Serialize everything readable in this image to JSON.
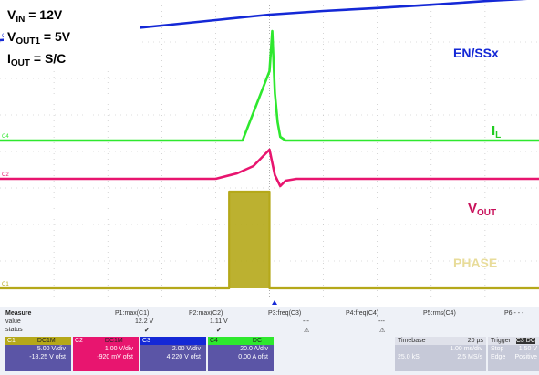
{
  "conditions": {
    "vin": {
      "main": "V",
      "sub": "IN",
      "rest": " = 12V"
    },
    "vout1": {
      "main": "V",
      "sub": "OUT1",
      "rest": " = 5V"
    },
    "iout": {
      "main": "I",
      "sub": "OUT",
      "rest": " = S/C"
    }
  },
  "colors": {
    "c1": "#b5a81a",
    "c2": "#e8156f",
    "c3": "#1428d6",
    "c4": "#2ee82e",
    "grid": "#b9b9b9",
    "label_il": "#22cc22",
    "label_vout": "#c8105a",
    "label_phase": "#e8dc9a"
  },
  "chart_data": {
    "type": "line",
    "title": "",
    "xlabel": "",
    "ylabel": "",
    "x_unit": "ms",
    "xlim": [
      -5,
      5
    ],
    "ylim": [
      0,
      8
    ],
    "grid": true,
    "series": [
      {
        "name": "EN/SSx",
        "channel": "C3",
        "x": [
          -5,
          -4,
          -3,
          -2,
          -1,
          0,
          1,
          2,
          3,
          4,
          5
        ],
        "y": [
          7.05,
          7.15,
          7.3,
          7.45,
          7.6,
          7.75,
          7.85,
          7.93,
          8.02,
          8.12,
          8.2
        ]
      },
      {
        "name": "I",
        "label_sub": "L",
        "channel": "C4",
        "x": [
          -5,
          -1,
          -0.5,
          0,
          0.05,
          0.1,
          0.15,
          0.2,
          0.3,
          0.5,
          5
        ],
        "y": [
          4.3,
          4.3,
          4.3,
          6.2,
          7.3,
          5.6,
          4.8,
          4.4,
          4.3,
          4.3,
          4.3
        ]
      },
      {
        "name": "V",
        "label_sub": "OUT",
        "channel": "C2",
        "x": [
          -5,
          -1,
          -0.6,
          -0.3,
          0,
          0.1,
          0.2,
          0.3,
          0.5,
          1.0,
          5
        ],
        "y": [
          3.25,
          3.25,
          3.4,
          3.6,
          4.05,
          3.35,
          3.05,
          3.2,
          3.25,
          3.25,
          3.25
        ]
      },
      {
        "name": "PHASE",
        "channel": "C1",
        "x": [
          -5,
          -0.75,
          -0.75,
          0,
          0,
          5
        ],
        "y": [
          0.25,
          0.25,
          2.9,
          2.9,
          0.25,
          0.25
        ]
      }
    ],
    "trace_labels": [
      {
        "ref": "EN/SSx",
        "main": "EN/SSx",
        "sub": ""
      },
      {
        "ref": "IL",
        "main": "I",
        "sub": "L"
      },
      {
        "ref": "VOUT",
        "main": "V",
        "sub": "OUT"
      },
      {
        "ref": "PHASE",
        "main": "PHASE",
        "sub": ""
      }
    ],
    "channel_markers": [
      "C3",
      "C4",
      "C2",
      "C1"
    ]
  },
  "measure": {
    "title": "Measure",
    "rows": [
      "value",
      "status"
    ],
    "columns": [
      {
        "name": "P1:max(C1)",
        "value": "12.2 V",
        "status": "✔"
      },
      {
        "name": "P2:max(C2)",
        "value": "1.11 V",
        "status": "✔"
      },
      {
        "name": "P3:freq(C3)",
        "value": "---",
        "status": "⚠"
      },
      {
        "name": "P4:freq(C4)",
        "value": "---",
        "status": "⚠"
      },
      {
        "name": "P5:rms(C4)",
        "value": "",
        "status": ""
      },
      {
        "name": "P6:- - -",
        "value": "",
        "status": ""
      }
    ]
  },
  "channels": [
    {
      "name": "C1",
      "tag": "DC1M",
      "color": "#5b55a6",
      "hcolor": "#b5a81a",
      "vdiv": "5.00 V/div",
      "offset": "-18.25 V ofst"
    },
    {
      "name": "C2",
      "tag": "DC1M",
      "color": "#e8156f",
      "hcolor": "#e8156f",
      "vdiv": "1.00 V/div",
      "offset": "-920 mV ofst"
    },
    {
      "name": "C3",
      "tag": "",
      "color": "#1428d6",
      "hcolor": "#1428d6",
      "vdiv": "2.00 V/div",
      "offset": "4.220 V ofst"
    },
    {
      "name": "C4",
      "tag": "DC",
      "color": "#5b55a6",
      "hcolor": "#2ee82e",
      "vdiv": "20.0 A/div",
      "offset": "0.00 A ofst"
    }
  ],
  "timebase": {
    "label": "Timebase",
    "delay": "20 µs",
    "tdiv": "1.00 ms/div",
    "samples": "25.0 kS",
    "rate": "2.5 MS/s"
  },
  "trigger": {
    "label": "Trigger",
    "tag": "C3 DC",
    "mode": "Stop",
    "level": "1.50 V",
    "type": "Edge",
    "slope": "Positive"
  }
}
